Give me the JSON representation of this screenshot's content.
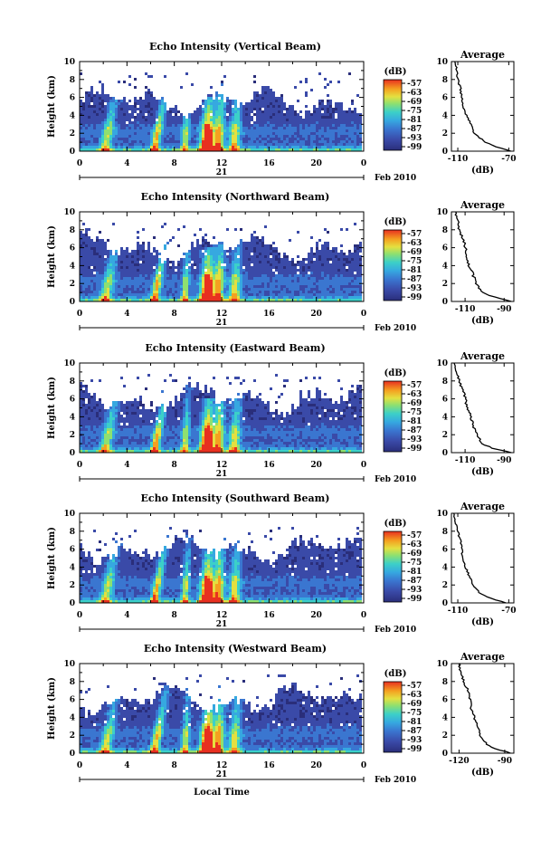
{
  "chart_data": [
    {
      "type": "heatmap",
      "title": "Echo Intensity (Vertical Beam)",
      "ylabel": "Height (km)",
      "xlabel": "",
      "x_ticks": [
        "0",
        "4",
        "8",
        "12",
        "16",
        "20",
        "0"
      ],
      "y_ticks": [
        "0",
        "2",
        "4",
        "6",
        "8",
        "10"
      ],
      "xlim": [
        0,
        24
      ],
      "ylim": [
        0,
        10
      ],
      "date_day": "21",
      "date_label": "Feb 2010",
      "colorbar": {
        "label": "(dB)",
        "ticks": [
          "-57",
          "-63",
          "-69",
          "-75",
          "-81",
          "-87",
          "-93",
          "-99"
        ]
      },
      "average_profile": {
        "title": "Average",
        "xlabel": "(dB)",
        "x_ticks": [
          "-110",
          "-70"
        ],
        "xlim": [
          -115,
          -66
        ],
        "y_ticks": [
          "0",
          "2",
          "4",
          "6",
          "8",
          "10"
        ],
        "height_km": [
          0,
          0.5,
          1,
          1.5,
          2,
          3,
          4,
          5,
          6,
          7,
          8,
          9,
          10
        ],
        "values_db": [
          -68,
          -80,
          -88,
          -93,
          -97,
          -100,
          -103,
          -106,
          -107,
          -108,
          -110,
          -111,
          -112
        ]
      }
    },
    {
      "type": "heatmap",
      "title": "Echo Intensity (Northward Beam)",
      "ylabel": "Height (km)",
      "xlabel": "",
      "x_ticks": [
        "0",
        "4",
        "8",
        "12",
        "16",
        "20",
        "0"
      ],
      "y_ticks": [
        "0",
        "2",
        "4",
        "6",
        "8",
        "10"
      ],
      "xlim": [
        0,
        24
      ],
      "ylim": [
        0,
        10
      ],
      "date_day": "21",
      "date_label": "Feb 2010",
      "colorbar": {
        "label": "(dB)",
        "ticks": [
          "-57",
          "-63",
          "-69",
          "-75",
          "-81",
          "-87",
          "-93",
          "-99"
        ]
      },
      "average_profile": {
        "title": "Average",
        "xlabel": "(dB)",
        "x_ticks": [
          "-110",
          "-90"
        ],
        "xlim": [
          -117,
          -85
        ],
        "y_ticks": [
          "0",
          "2",
          "4",
          "6",
          "8",
          "10"
        ],
        "height_km": [
          0,
          0.5,
          1,
          2,
          3,
          4,
          5,
          6,
          7,
          8,
          9,
          10
        ],
        "values_db": [
          -86,
          -95,
          -101,
          -104,
          -106,
          -108,
          -109,
          -110,
          -111,
          -113,
          -114,
          -115
        ]
      }
    },
    {
      "type": "heatmap",
      "title": "Echo Intensity (Eastward Beam)",
      "ylabel": "Height (km)",
      "xlabel": "",
      "x_ticks": [
        "0",
        "4",
        "8",
        "12",
        "16",
        "20",
        "0"
      ],
      "y_ticks": [
        "0",
        "2",
        "4",
        "6",
        "8",
        "10"
      ],
      "xlim": [
        0,
        24
      ],
      "ylim": [
        0,
        10
      ],
      "date_day": "21",
      "date_label": "Feb 2010",
      "colorbar": {
        "label": "(dB)",
        "ticks": [
          "-57",
          "-63",
          "-69",
          "-75",
          "-81",
          "-87",
          "-93",
          "-99"
        ]
      },
      "average_profile": {
        "title": "Average",
        "xlabel": "(dB)",
        "x_ticks": [
          "-110",
          "-90"
        ],
        "xlim": [
          -117,
          -85
        ],
        "y_ticks": [
          "0",
          "2",
          "4",
          "6",
          "8",
          "10"
        ],
        "height_km": [
          0,
          0.5,
          1,
          2,
          3,
          4,
          5,
          6,
          7,
          8,
          9,
          10
        ],
        "values_db": [
          -86,
          -96,
          -101,
          -104,
          -106,
          -107,
          -109,
          -110,
          -111,
          -113,
          -114,
          -115
        ]
      }
    },
    {
      "type": "heatmap",
      "title": "Echo Intensity (Southward Beam)",
      "ylabel": "Height (km)",
      "xlabel": "",
      "x_ticks": [
        "0",
        "4",
        "8",
        "12",
        "16",
        "20",
        "0"
      ],
      "y_ticks": [
        "0",
        "2",
        "4",
        "6",
        "8",
        "10"
      ],
      "xlim": [
        0,
        24
      ],
      "ylim": [
        0,
        10
      ],
      "date_day": "21",
      "date_label": "Feb 2010",
      "colorbar": {
        "label": "(dB)",
        "ticks": [
          "-57",
          "-63",
          "-69",
          "-75",
          "-81",
          "-87",
          "-93",
          "-99"
        ]
      },
      "average_profile": {
        "title": "Average",
        "xlabel": "(dB)",
        "x_ticks": [
          "-110",
          "-70"
        ],
        "xlim": [
          -115,
          -66
        ],
        "y_ticks": [
          "0",
          "2",
          "4",
          "6",
          "8",
          "10"
        ],
        "height_km": [
          0,
          0.5,
          1,
          2,
          3,
          4,
          5,
          6,
          7,
          8,
          9,
          10
        ],
        "values_db": [
          -72,
          -84,
          -92,
          -98,
          -101,
          -104,
          -106,
          -107,
          -108,
          -110,
          -112,
          -113
        ]
      }
    },
    {
      "type": "heatmap",
      "title": "Echo Intensity (Westward Beam)",
      "ylabel": "Height (km)",
      "xlabel": "Local Time",
      "x_ticks": [
        "0",
        "4",
        "8",
        "12",
        "16",
        "20",
        "0"
      ],
      "y_ticks": [
        "0",
        "2",
        "4",
        "6",
        "8",
        "10"
      ],
      "xlim": [
        0,
        24
      ],
      "ylim": [
        0,
        10
      ],
      "date_day": "21",
      "date_label": "Feb 2010",
      "colorbar": {
        "label": "(dB)",
        "ticks": [
          "-57",
          "-63",
          "-69",
          "-75",
          "-81",
          "-87",
          "-93",
          "-99"
        ]
      },
      "average_profile": {
        "title": "Average",
        "xlabel": "(dB)",
        "x_ticks": [
          "-120",
          "-90"
        ],
        "xlim": [
          -125,
          -84
        ],
        "y_ticks": [
          "0",
          "2",
          "4",
          "6",
          "8",
          "10"
        ],
        "height_km": [
          0,
          0.5,
          1,
          2,
          3,
          4,
          5,
          6,
          7,
          8,
          9,
          10
        ],
        "values_db": [
          -86,
          -96,
          -102,
          -106,
          -108,
          -110,
          -112,
          -113,
          -114,
          -117,
          -119,
          -120
        ]
      }
    }
  ],
  "colors": {
    "colormap": [
      "#2a2e7a",
      "#3a4aa8",
      "#3a76d0",
      "#36a8e0",
      "#3cd0c8",
      "#8ee070",
      "#e4e040",
      "#f4a020",
      "#e83020"
    ]
  }
}
